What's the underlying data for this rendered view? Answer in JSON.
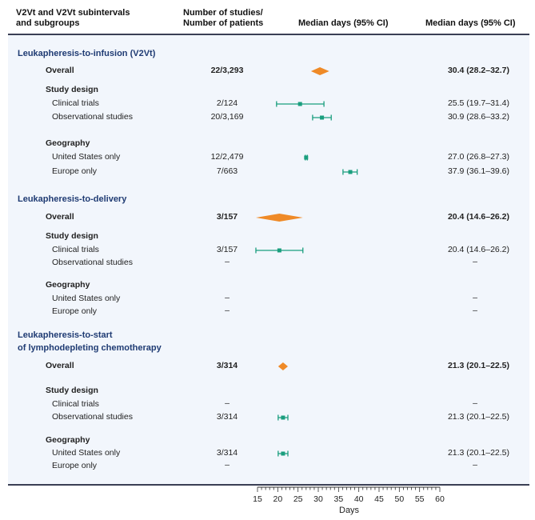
{
  "header": {
    "col1_line1": "V2Vt and V2Vt subintervals",
    "col1_line2": "and subgroups",
    "col2_line1": "Number of studies/",
    "col2_line2": "Number of patients",
    "col3": "Median days (95% CI)",
    "col4": "Median days (95% CI)"
  },
  "chart_data": {
    "type": "forest",
    "xlabel": "Days",
    "xlim": [
      15,
      60
    ],
    "xticks": [
      "15",
      "20",
      "25",
      "30",
      "35",
      "40",
      "45",
      "50",
      "55",
      "60"
    ],
    "colors": {
      "summary": "#ef8a27",
      "study": "#1a9e7e"
    },
    "sections": [
      {
        "title": "Leukapheresis-to-infusion (V2Vt)",
        "rows": [
          {
            "label": "Overall",
            "kind": "overall",
            "n": "22/3,293",
            "median": 30.4,
            "lo": 28.2,
            "hi": 32.7,
            "ci_text": "30.4 (28.2–32.7)"
          },
          {
            "label": "Study design",
            "kind": "group"
          },
          {
            "label": "Clinical trials",
            "kind": "sub",
            "n": "2/124",
            "median": 25.5,
            "lo": 19.7,
            "hi": 31.4,
            "ci_text": "25.5 (19.7–31.4)"
          },
          {
            "label": "Observational studies",
            "kind": "sub",
            "n": "20/3,169",
            "median": 30.9,
            "lo": 28.6,
            "hi": 33.2,
            "ci_text": "30.9 (28.6–33.2)"
          },
          {
            "label": "Geography",
            "kind": "group"
          },
          {
            "label": "United States only",
            "kind": "sub",
            "n": "12/2,479",
            "median": 27.0,
            "lo": 26.8,
            "hi": 27.3,
            "ci_text": "27.0 (26.8–27.3)"
          },
          {
            "label": "Europe only",
            "kind": "sub",
            "n": "7/663",
            "median": 37.9,
            "lo": 36.1,
            "hi": 39.6,
            "ci_text": "37.9 (36.1–39.6)"
          }
        ]
      },
      {
        "title": "Leukapheresis-to-delivery",
        "rows": [
          {
            "label": "Overall",
            "kind": "overall",
            "n": "3/157",
            "median": 20.4,
            "lo": 14.6,
            "hi": 26.2,
            "ci_text": "20.4 (14.6–26.2)"
          },
          {
            "label": "Study design",
            "kind": "group"
          },
          {
            "label": "Clinical trials",
            "kind": "sub",
            "n": "3/157",
            "median": 20.4,
            "lo": 14.6,
            "hi": 26.2,
            "ci_text": "20.4 (14.6–26.2)"
          },
          {
            "label": "Observational studies",
            "kind": "sub",
            "n": "–",
            "ci_text": "–"
          },
          {
            "label": "Geography",
            "kind": "group"
          },
          {
            "label": "United States only",
            "kind": "sub",
            "n": "–",
            "ci_text": "–"
          },
          {
            "label": "Europe only",
            "kind": "sub",
            "n": "–",
            "ci_text": "–"
          }
        ]
      },
      {
        "title": "Leukapheresis-to-start of lymphodepleting chemotherapy",
        "title_line1": "Leukapheresis-to-start",
        "title_line2": "of lymphodepleting chemotherapy",
        "rows": [
          {
            "label": "Overall",
            "kind": "overall",
            "n": "3/314",
            "median": 21.3,
            "lo": 20.1,
            "hi": 22.5,
            "ci_text": "21.3 (20.1–22.5)"
          },
          {
            "label": "Study design",
            "kind": "group"
          },
          {
            "label": "Clinical trials",
            "kind": "sub",
            "n": "–",
            "ci_text": "–"
          },
          {
            "label": "Observational studies",
            "kind": "sub",
            "n": "3/314",
            "median": 21.3,
            "lo": 20.1,
            "hi": 22.5,
            "ci_text": "21.3 (20.1–22.5)"
          },
          {
            "label": "Geography",
            "kind": "group"
          },
          {
            "label": "United States only",
            "kind": "sub",
            "n": "3/314",
            "median": 21.3,
            "lo": 20.1,
            "hi": 22.5,
            "ci_text": "21.3 (20.1–22.5)"
          },
          {
            "label": "Europe only",
            "kind": "sub",
            "n": "–",
            "ci_text": "–"
          }
        ]
      }
    ]
  }
}
